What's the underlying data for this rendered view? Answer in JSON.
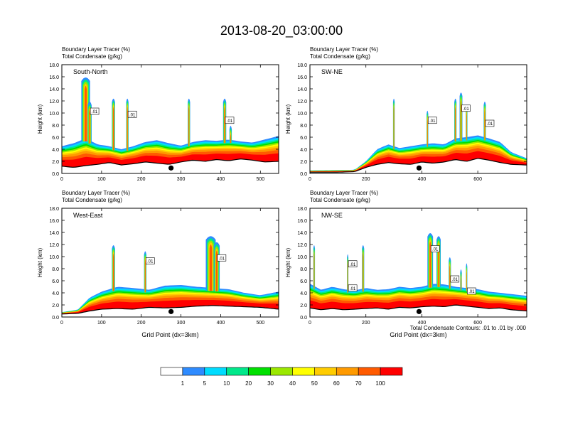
{
  "title": "2013-08-20_03:00:00",
  "bottom_note": "Total Condensate Contours: .01 to .01 by .000",
  "chart_data": [
    {
      "type": "heatmap",
      "panel_label": "South-North",
      "subtitles": [
        "Boundary Layer Tracer   (%)",
        "Total Condensate   (g/kg)"
      ],
      "xlabel": "",
      "ylabel": "Height (km)",
      "xlim": [
        0,
        546
      ],
      "ylim": [
        0,
        18
      ],
      "xticks": [
        0,
        100,
        200,
        300,
        400,
        500
      ],
      "yticks": [
        "0.0",
        "2.0",
        "4.0",
        "6.0",
        "8.0",
        "10.0",
        "12.0",
        "14.0",
        "16.0",
        "18.0"
      ],
      "terrain": [
        [
          0,
          1.2
        ],
        [
          30,
          1.0
        ],
        [
          60,
          1.3
        ],
        [
          90,
          1.5
        ],
        [
          120,
          1.8
        ],
        [
          150,
          1.4
        ],
        [
          180,
          1.6
        ],
        [
          210,
          1.9
        ],
        [
          240,
          1.7
        ],
        [
          270,
          1.5
        ],
        [
          300,
          1.9
        ],
        [
          330,
          2.2
        ],
        [
          360,
          2.0
        ],
        [
          390,
          2.3
        ],
        [
          420,
          2.1
        ],
        [
          450,
          2.4
        ],
        [
          480,
          2.2
        ],
        [
          510,
          1.9
        ],
        [
          546,
          2.0
        ]
      ],
      "pbl_top": [
        [
          0,
          4.5
        ],
        [
          30,
          5.0
        ],
        [
          60,
          5.8
        ],
        [
          90,
          4.8
        ],
        [
          120,
          4.5
        ],
        [
          150,
          4.0
        ],
        [
          180,
          4.5
        ],
        [
          210,
          5.2
        ],
        [
          240,
          5.5
        ],
        [
          270,
          5.0
        ],
        [
          300,
          4.6
        ],
        [
          330,
          5.2
        ],
        [
          360,
          5.5
        ],
        [
          390,
          5.4
        ],
        [
          420,
          5.6
        ],
        [
          450,
          5.3
        ],
        [
          480,
          5.1
        ],
        [
          510,
          5.6
        ],
        [
          546,
          6.2
        ]
      ],
      "plumes": [
        [
          60,
          16.0,
          22
        ],
        [
          70,
          12.0,
          10
        ],
        [
          130,
          12.5,
          8
        ],
        [
          165,
          12.5,
          6
        ],
        [
          320,
          12.5,
          6
        ],
        [
          410,
          12.5,
          8
        ],
        [
          425,
          8.0,
          6
        ]
      ],
      "dot_x": 275,
      "contour_labels": [
        ".01",
        ".01",
        ".01"
      ]
    },
    {
      "type": "heatmap",
      "panel_label": "SW-NE",
      "subtitles": [
        "Boundary Layer Tracer   (%)",
        "Total Condensate   (g/kg)"
      ],
      "xlabel": "",
      "ylabel": "Height (km)",
      "xlim": [
        0,
        775
      ],
      "ylim": [
        0,
        18
      ],
      "xticks": [
        0,
        200,
        400,
        600
      ],
      "yticks": [
        "0.0",
        "2.0",
        "4.0",
        "6.0",
        "8.0",
        "10.0",
        "12.0",
        "14.0",
        "16.0",
        "18.0"
      ],
      "terrain": [
        [
          0,
          0.2
        ],
        [
          100,
          0.2
        ],
        [
          160,
          0.3
        ],
        [
          200,
          1.0
        ],
        [
          240,
          1.5
        ],
        [
          280,
          1.8
        ],
        [
          320,
          1.6
        ],
        [
          360,
          1.5
        ],
        [
          400,
          1.9
        ],
        [
          440,
          1.7
        ],
        [
          480,
          1.9
        ],
        [
          520,
          2.3
        ],
        [
          560,
          2.0
        ],
        [
          600,
          2.5
        ],
        [
          640,
          2.2
        ],
        [
          680,
          1.8
        ],
        [
          720,
          1.5
        ],
        [
          775,
          1.4
        ]
      ],
      "pbl_top": [
        [
          0,
          0.5
        ],
        [
          160,
          0.6
        ],
        [
          200,
          2.0
        ],
        [
          240,
          4.0
        ],
        [
          280,
          4.8
        ],
        [
          320,
          4.2
        ],
        [
          360,
          4.5
        ],
        [
          400,
          4.8
        ],
        [
          440,
          5.0
        ],
        [
          480,
          4.8
        ],
        [
          520,
          5.8
        ],
        [
          560,
          6.0
        ],
        [
          600,
          6.3
        ],
        [
          640,
          5.8
        ],
        [
          680,
          5.2
        ],
        [
          720,
          3.5
        ],
        [
          775,
          2.5
        ]
      ],
      "plumes": [
        [
          300,
          12.5,
          6
        ],
        [
          420,
          10.5,
          6
        ],
        [
          520,
          12.5,
          8
        ],
        [
          540,
          13.5,
          10
        ],
        [
          560,
          11.5,
          6
        ],
        [
          625,
          12.0,
          8
        ]
      ],
      "dot_x": 390,
      "contour_labels": [
        ".01",
        ".01",
        ".01"
      ]
    },
    {
      "type": "heatmap",
      "panel_label": "West-East",
      "subtitles": [
        "Boundary Layer Tracer   (%)",
        "Total Condensate   (g/kg)"
      ],
      "xlabel": "Grid Point (dx=3km)",
      "ylabel": "Height (km)",
      "xlim": [
        0,
        546
      ],
      "ylim": [
        0,
        18
      ],
      "xticks": [
        0,
        100,
        200,
        300,
        400,
        500
      ],
      "yticks": [
        "0.0",
        "2.0",
        "4.0",
        "6.0",
        "8.0",
        "10.0",
        "12.0",
        "14.0",
        "16.0",
        "18.0"
      ],
      "terrain": [
        [
          0,
          0.5
        ],
        [
          40,
          0.6
        ],
        [
          70,
          1.0
        ],
        [
          100,
          1.3
        ],
        [
          140,
          1.4
        ],
        [
          180,
          1.3
        ],
        [
          220,
          1.6
        ],
        [
          260,
          1.5
        ],
        [
          300,
          1.6
        ],
        [
          340,
          1.8
        ],
        [
          380,
          1.9
        ],
        [
          420,
          1.8
        ],
        [
          460,
          1.7
        ],
        [
          500,
          1.6
        ],
        [
          546,
          1.3
        ]
      ],
      "pbl_top": [
        [
          0,
          0.8
        ],
        [
          40,
          1.2
        ],
        [
          70,
          3.2
        ],
        [
          100,
          4.2
        ],
        [
          140,
          5.0
        ],
        [
          180,
          4.8
        ],
        [
          220,
          4.5
        ],
        [
          260,
          5.2
        ],
        [
          300,
          5.3
        ],
        [
          340,
          5.0
        ],
        [
          380,
          4.8
        ],
        [
          420,
          4.6
        ],
        [
          460,
          4.0
        ],
        [
          500,
          3.6
        ],
        [
          546,
          4.2
        ]
      ],
      "plumes": [
        [
          130,
          12.0,
          8
        ],
        [
          210,
          11.0,
          6
        ],
        [
          375,
          13.5,
          25
        ],
        [
          390,
          12.5,
          15
        ]
      ],
      "dot_x": 275,
      "contour_labels": [
        ".01",
        ".01"
      ]
    },
    {
      "type": "heatmap",
      "panel_label": "NW-SE",
      "subtitles": [
        "Boundary Layer Tracer   (%)",
        "Total Condensate   (g/kg)"
      ],
      "xlabel": "Grid Point (dx=3km)",
      "ylabel": "Height (km)",
      "xlim": [
        0,
        775
      ],
      "ylim": [
        0,
        18
      ],
      "xticks": [
        0,
        200,
        400,
        600
      ],
      "yticks": [
        "0.0",
        "2.0",
        "4.0",
        "6.0",
        "8.0",
        "10.0",
        "12.0",
        "14.0",
        "16.0",
        "18.0"
      ],
      "terrain": [
        [
          0,
          1.5
        ],
        [
          40,
          1.2
        ],
        [
          80,
          1.4
        ],
        [
          120,
          1.2
        ],
        [
          160,
          1.3
        ],
        [
          200,
          1.4
        ],
        [
          240,
          1.5
        ],
        [
          280,
          1.3
        ],
        [
          320,
          1.6
        ],
        [
          360,
          1.5
        ],
        [
          400,
          1.7
        ],
        [
          440,
          1.8
        ],
        [
          480,
          1.7
        ],
        [
          520,
          2.0
        ],
        [
          560,
          1.8
        ],
        [
          600,
          1.6
        ],
        [
          640,
          1.4
        ],
        [
          680,
          1.5
        ],
        [
          720,
          1.2
        ],
        [
          775,
          1.0
        ]
      ],
      "pbl_top": [
        [
          0,
          5.5
        ],
        [
          40,
          4.5
        ],
        [
          80,
          5.0
        ],
        [
          120,
          4.6
        ],
        [
          160,
          4.4
        ],
        [
          200,
          4.8
        ],
        [
          240,
          4.5
        ],
        [
          280,
          4.6
        ],
        [
          320,
          5.0
        ],
        [
          360,
          4.8
        ],
        [
          400,
          5.0
        ],
        [
          440,
          5.5
        ],
        [
          480,
          5.4
        ],
        [
          520,
          5.0
        ],
        [
          560,
          4.8
        ],
        [
          600,
          4.6
        ],
        [
          640,
          4.2
        ],
        [
          680,
          4.0
        ],
        [
          720,
          3.8
        ],
        [
          775,
          3.5
        ]
      ],
      "plumes": [
        [
          15,
          12.0,
          6
        ],
        [
          135,
          10.5,
          5
        ],
        [
          190,
          12.0,
          8
        ],
        [
          430,
          14.0,
          20
        ],
        [
          460,
          13.5,
          15
        ],
        [
          500,
          10.0,
          8
        ],
        [
          540,
          8.0,
          6
        ],
        [
          560,
          9.0,
          5
        ]
      ],
      "dot_x": 390,
      "contour_labels": [
        ".01",
        ".01",
        ".01",
        ".01",
        ".01"
      ]
    }
  ],
  "colorbar": {
    "labels": [
      "1",
      "5",
      "10",
      "20",
      "30",
      "40",
      "50",
      "60",
      "70",
      "100"
    ],
    "colors": [
      "#ffffff",
      "#2e8bff",
      "#00dcff",
      "#00e88a",
      "#00e000",
      "#9be800",
      "#ffff00",
      "#ffcc00",
      "#ff9a00",
      "#ff5a00",
      "#ff0000"
    ]
  }
}
